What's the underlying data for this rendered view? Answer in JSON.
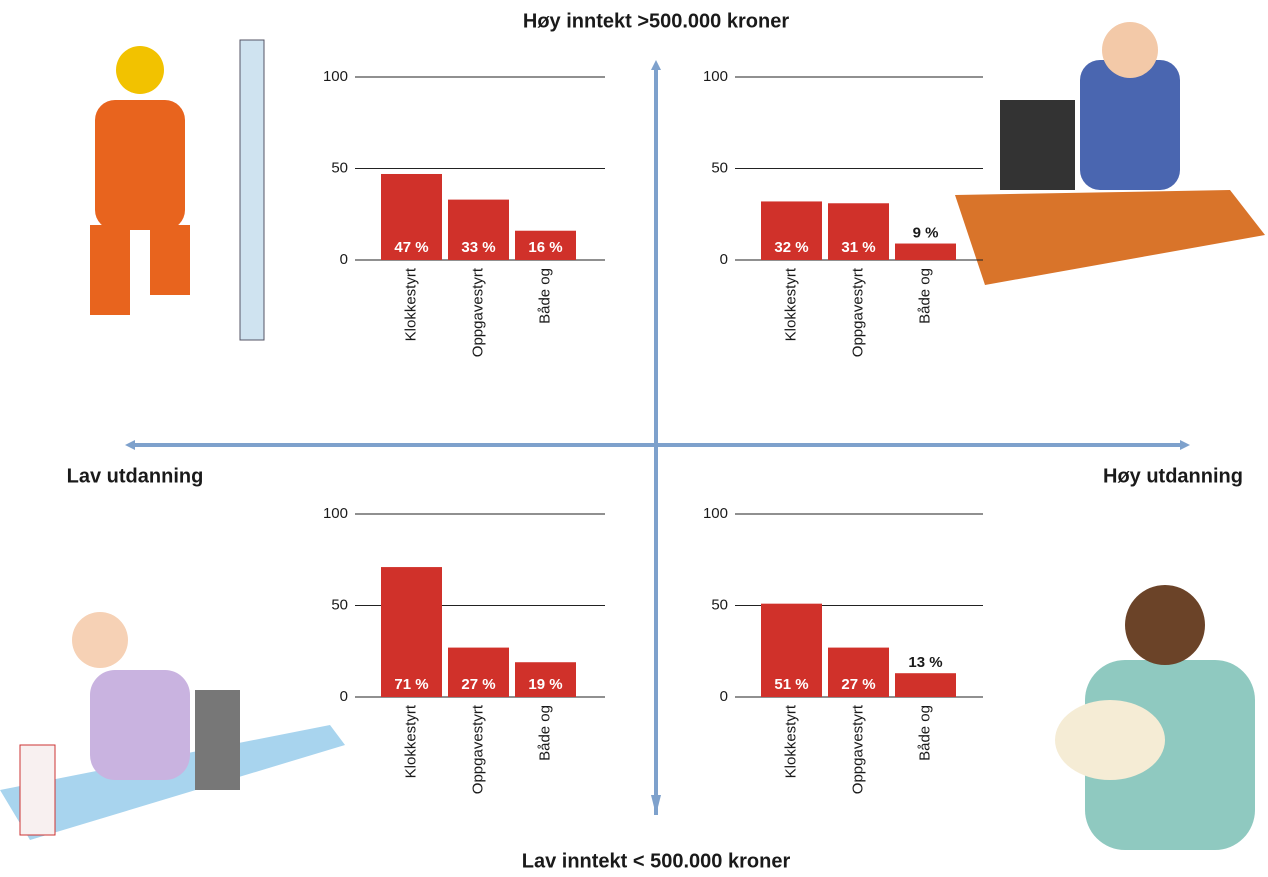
{
  "quadrant_labels": {
    "top": "Høy inntekt >500.000 kroner",
    "bottom": "Lav inntekt < 500.000 kroner",
    "left": "Lav utdanning",
    "right": "Høy utdanning"
  },
  "chart_data": [
    {
      "type": "bar",
      "categories": [
        "Klokkestyrt",
        "Oppgavestyrt",
        "Både og"
      ],
      "values": [
        47,
        33,
        16
      ],
      "value_labels": [
        "47 %",
        "33 %",
        "16 %"
      ],
      "color": "#d0312a",
      "ylim": [
        0,
        100
      ],
      "yticks": [
        0,
        50,
        100
      ],
      "grid": true
    },
    {
      "type": "bar",
      "categories": [
        "Klokkestyrt",
        "Oppgavestyrt",
        "Både og"
      ],
      "values": [
        32,
        31,
        9
      ],
      "value_labels": [
        "32 %",
        "31 %",
        "9 %"
      ],
      "color": "#d0312a",
      "ylim": [
        0,
        100
      ],
      "yticks": [
        0,
        50,
        100
      ],
      "grid": true
    },
    {
      "type": "bar",
      "categories": [
        "Klokkestyrt",
        "Oppgavestyrt",
        "Både og"
      ],
      "values": [
        71,
        27,
        19
      ],
      "value_labels": [
        "71 %",
        "27 %",
        "19 %"
      ],
      "color": "#d0312a",
      "ylim": [
        0,
        100
      ],
      "yticks": [
        0,
        50,
        100
      ],
      "grid": true
    },
    {
      "type": "bar",
      "categories": [
        "Klokkestyrt",
        "Oppgavestyrt",
        "Både og"
      ],
      "values": [
        51,
        27,
        13
      ],
      "value_labels": [
        "51 %",
        "27 %",
        "13 %"
      ],
      "color": "#d0312a",
      "ylim": [
        0,
        100
      ],
      "yticks": [
        0,
        50,
        100
      ],
      "grid": true
    }
  ]
}
